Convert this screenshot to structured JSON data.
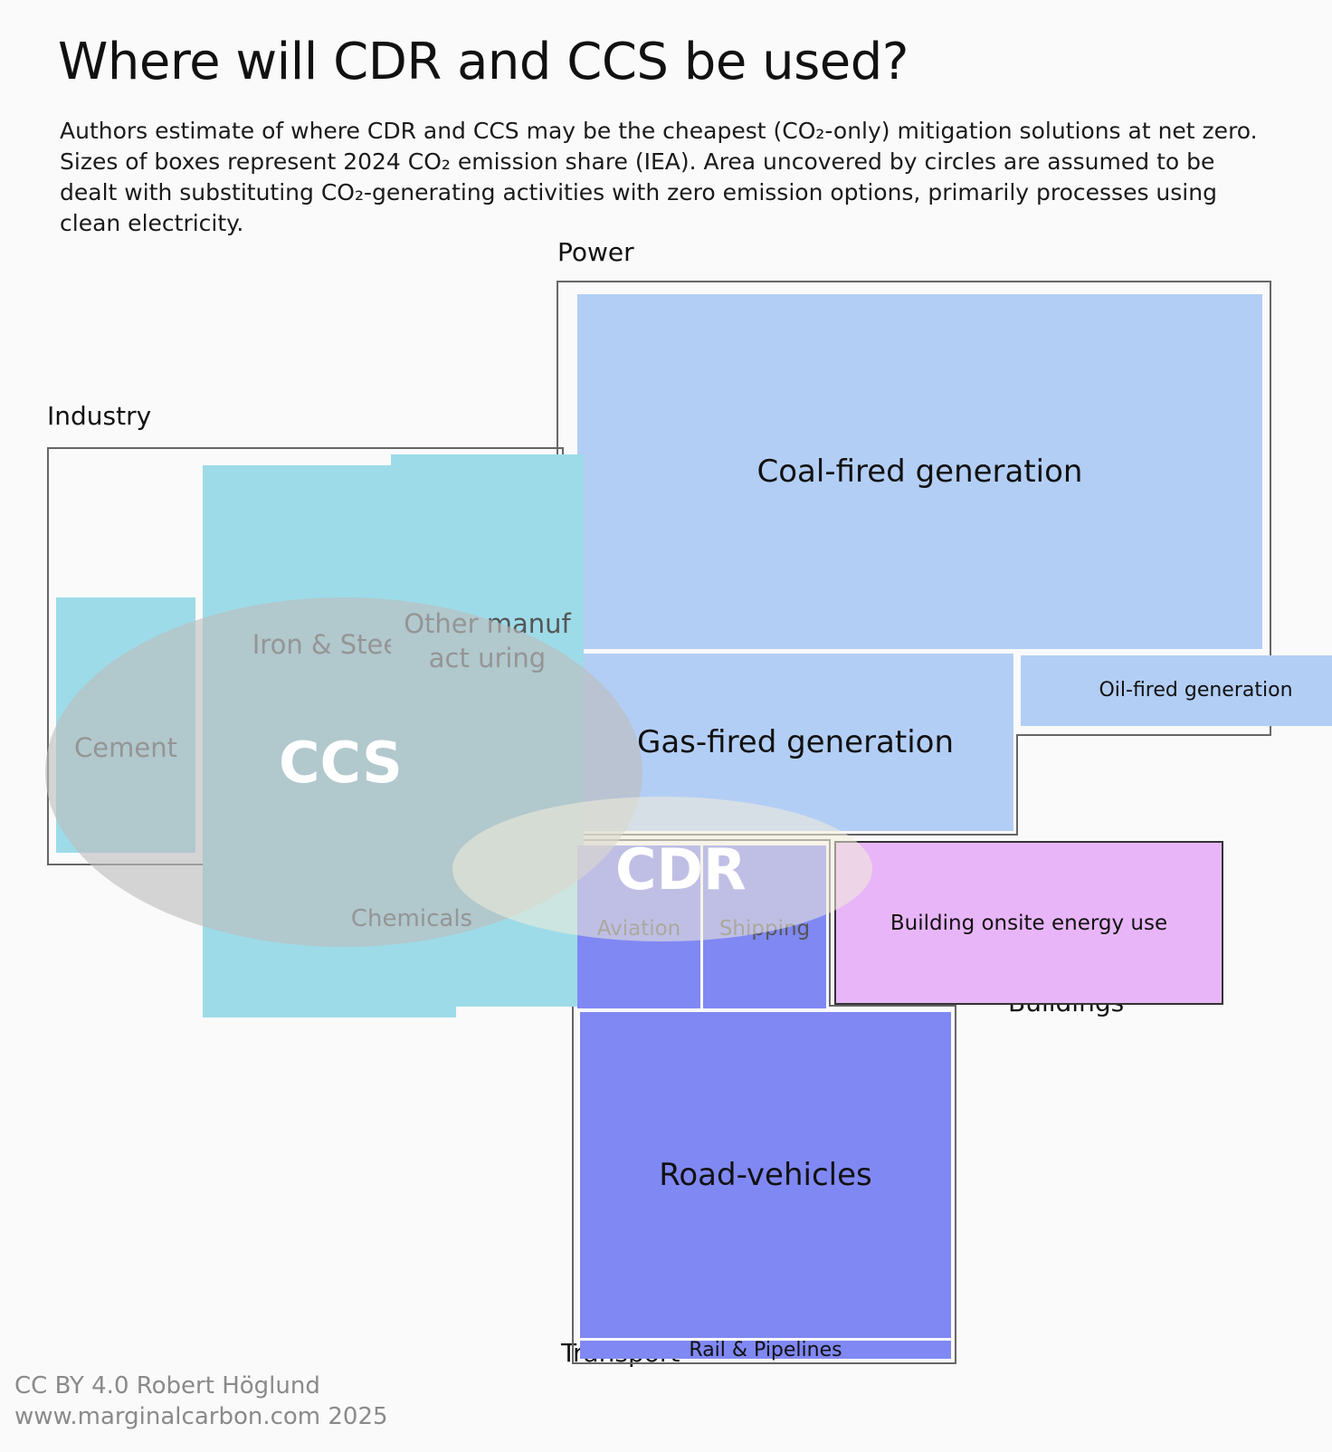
{
  "title": "Where will CDR and CCS be used?",
  "subtitle": "Authors estimate of where CDR and CCS may be the cheapest (CO₂-only) mitigation solutions at net zero. Sizes of boxes represent 2024 CO₂ emission share (IEA). Area uncovered by circles are assumed to be dealt with substituting CO₂-generating activities with zero emission options, primarily processes using clean electricity.",
  "groups": {
    "power": {
      "label": "Power",
      "color": "#b3cef5",
      "items": {
        "coal": "Coal-fired generation",
        "gas": "Gas-fired generation",
        "oil": "Oil-fired generation"
      }
    },
    "industry": {
      "label": "Industry",
      "color": "#9edbe8",
      "items": {
        "cement": "Cement",
        "iron_steel": "Iron & Steel",
        "other_manufacturing": "Other manufact uring",
        "chemicals": "Chemicals"
      }
    },
    "transport": {
      "label": "Transport",
      "color": "#8088f3",
      "items": {
        "aviation": "Aviation",
        "shipping": "Shipping",
        "road": "Road-vehicles",
        "rail": "Rail & Pipelines"
      }
    },
    "buildings": {
      "label": "Buildings",
      "color": "#e8b6f8",
      "items": {
        "onsite": "Building onsite energy use"
      }
    }
  },
  "overlays": {
    "ccs": {
      "label": "CCS",
      "color": "#bdbdbd"
    },
    "cdr": {
      "label": "CDR",
      "color": "#f3ecd8"
    }
  },
  "footer": {
    "license": "CC BY 4.0  Robert Höglund",
    "site": "www.marginalcarbon.com 2025"
  }
}
